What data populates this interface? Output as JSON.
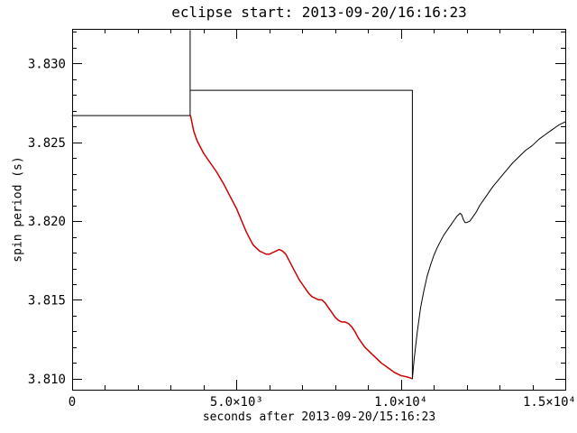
{
  "colors": {
    "background": "#ffffff",
    "axis": "#000000",
    "normal_segment": "#000000",
    "eclipse_segment": "#cc0000"
  },
  "chart_data": {
    "type": "line",
    "title": "eclipse start: 2013-09-20/16:16:23",
    "xlabel": "seconds after 2013-09-20/15:16:23",
    "ylabel": "spin period (s)",
    "xlim": [
      0,
      15000
    ],
    "ylim": [
      3.8093,
      3.8322
    ],
    "grid": false,
    "legend": "none",
    "x_major_ticks": [
      {
        "value": 0,
        "label": "0"
      },
      {
        "value": 5000,
        "label": "5.0×10³"
      },
      {
        "value": 10000,
        "label": "1.0×10⁴"
      },
      {
        "value": 15000,
        "label": "1.5×10⁴"
      }
    ],
    "x_minor_step": 1000,
    "y_major_ticks": [
      {
        "value": 3.81,
        "label": "3.810"
      },
      {
        "value": 3.815,
        "label": "3.815"
      },
      {
        "value": 3.82,
        "label": "3.820"
      },
      {
        "value": 3.825,
        "label": "3.825"
      },
      {
        "value": 3.83,
        "label": "3.830"
      }
    ],
    "y_minor_step": 0.001,
    "series": [
      {
        "name": "period-step-model",
        "color": "#000000",
        "width": 1,
        "points": [
          [
            0,
            3.8267
          ],
          [
            3590,
            3.8267
          ],
          [
            3590,
            3.8321
          ],
          [
            3590,
            3.8283
          ],
          [
            10350,
            3.8283
          ],
          [
            10350,
            3.81
          ]
        ]
      },
      {
        "name": "eclipse-spin-change",
        "color": "#cc0000",
        "width": 1.5,
        "points": [
          [
            3600,
            3.8267
          ],
          [
            3700,
            3.8257
          ],
          [
            3800,
            3.8251
          ],
          [
            4000,
            3.8243
          ],
          [
            4200,
            3.8237
          ],
          [
            4400,
            3.8231
          ],
          [
            4600,
            3.8224
          ],
          [
            4800,
            3.8216
          ],
          [
            5000,
            3.8208
          ],
          [
            5100,
            3.8203
          ],
          [
            5200,
            3.8198
          ],
          [
            5300,
            3.8193
          ],
          [
            5400,
            3.8189
          ],
          [
            5500,
            3.8185
          ],
          [
            5600,
            3.8183
          ],
          [
            5700,
            3.8181
          ],
          [
            5800,
            3.818
          ],
          [
            5900,
            3.8179
          ],
          [
            6000,
            3.8179
          ],
          [
            6100,
            3.818
          ],
          [
            6200,
            3.8181
          ],
          [
            6300,
            3.8182
          ],
          [
            6400,
            3.8181
          ],
          [
            6500,
            3.8179
          ],
          [
            6600,
            3.8175
          ],
          [
            6700,
            3.8171
          ],
          [
            6800,
            3.8167
          ],
          [
            6900,
            3.8163
          ],
          [
            7000,
            3.816
          ],
          [
            7100,
            3.8157
          ],
          [
            7200,
            3.8154
          ],
          [
            7300,
            3.8152
          ],
          [
            7400,
            3.8151
          ],
          [
            7500,
            3.815
          ],
          [
            7600,
            3.815
          ],
          [
            7700,
            3.8148
          ],
          [
            7800,
            3.8145
          ],
          [
            7900,
            3.8142
          ],
          [
            8000,
            3.8139
          ],
          [
            8100,
            3.8137
          ],
          [
            8200,
            3.8136
          ],
          [
            8300,
            3.8136
          ],
          [
            8400,
            3.8135
          ],
          [
            8500,
            3.8133
          ],
          [
            8600,
            3.813
          ],
          [
            8700,
            3.8126
          ],
          [
            8800,
            3.8123
          ],
          [
            8900,
            3.812
          ],
          [
            9000,
            3.8118
          ],
          [
            9200,
            3.8114
          ],
          [
            9400,
            3.811
          ],
          [
            9600,
            3.8107
          ],
          [
            9800,
            3.8104
          ],
          [
            10000,
            3.8102
          ],
          [
            10200,
            3.8101
          ],
          [
            10350,
            3.81
          ]
        ]
      },
      {
        "name": "post-eclipse-recovery",
        "color": "#000000",
        "width": 1,
        "points": [
          [
            10350,
            3.81
          ],
          [
            10400,
            3.8112
          ],
          [
            10500,
            3.813
          ],
          [
            10600,
            3.8145
          ],
          [
            10700,
            3.8156
          ],
          [
            10800,
            3.8165
          ],
          [
            10900,
            3.8172
          ],
          [
            11000,
            3.8178
          ],
          [
            11100,
            3.8183
          ],
          [
            11200,
            3.8187
          ],
          [
            11300,
            3.8191
          ],
          [
            11400,
            3.8194
          ],
          [
            11500,
            3.8197
          ],
          [
            11600,
            3.82
          ],
          [
            11700,
            3.8203
          ],
          [
            11750,
            3.8204
          ],
          [
            11800,
            3.8205
          ],
          [
            11850,
            3.8204
          ],
          [
            11900,
            3.8201
          ],
          [
            11950,
            3.8199
          ],
          [
            12000,
            3.8199
          ],
          [
            12100,
            3.82
          ],
          [
            12200,
            3.8203
          ],
          [
            12300,
            3.8206
          ],
          [
            12400,
            3.821
          ],
          [
            12600,
            3.8216
          ],
          [
            12800,
            3.8222
          ],
          [
            13000,
            3.8227
          ],
          [
            13200,
            3.8232
          ],
          [
            13400,
            3.8237
          ],
          [
            13600,
            3.8241
          ],
          [
            13800,
            3.8245
          ],
          [
            14000,
            3.8248
          ],
          [
            14200,
            3.8252
          ],
          [
            14400,
            3.8255
          ],
          [
            14600,
            3.8258
          ],
          [
            14800,
            3.8261
          ],
          [
            15000,
            3.8263
          ]
        ]
      }
    ]
  }
}
